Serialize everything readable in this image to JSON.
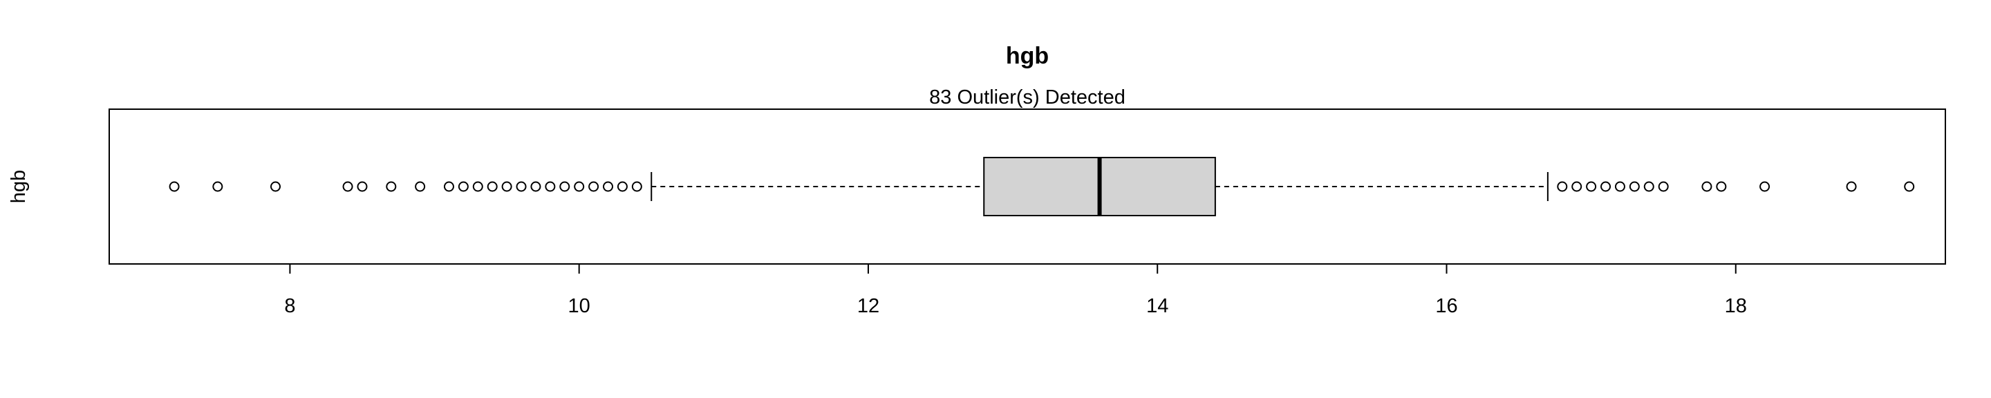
{
  "chart_data": {
    "type": "boxplot",
    "orientation": "horizontal",
    "title": "hgb",
    "subtitle": "83 Outlier(s) Detected",
    "ylabel": "hgb",
    "xlabel": "",
    "xlim": [
      6.75,
      19.45
    ],
    "xticks": [
      8,
      10,
      12,
      14,
      16,
      18
    ],
    "xtick_labels": [
      "8",
      "10",
      "12",
      "14",
      "16",
      "18"
    ],
    "grid": false,
    "box": {
      "whisker_low": 10.5,
      "q1": 12.8,
      "median": 13.6,
      "q3": 14.4,
      "whisker_high": 16.7,
      "fill": "#d3d3d3"
    },
    "outliers": [
      7.2,
      7.5,
      7.9,
      8.4,
      8.5,
      8.7,
      8.9,
      9.1,
      9.2,
      9.3,
      9.4,
      9.5,
      9.6,
      9.7,
      9.8,
      9.9,
      10.0,
      10.1,
      10.2,
      10.3,
      10.4,
      16.8,
      16.9,
      17.0,
      17.1,
      17.2,
      17.3,
      17.4,
      17.5,
      17.8,
      17.9,
      18.2,
      18.8,
      19.2
    ]
  }
}
